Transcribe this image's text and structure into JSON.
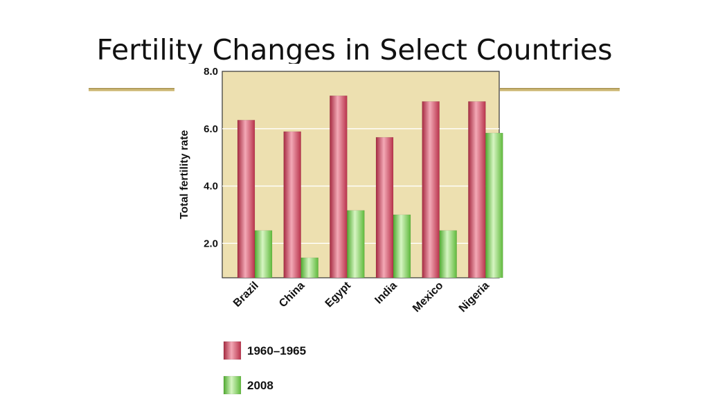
{
  "slide": {
    "title": "Fertility Changes in Select Countries"
  },
  "colors": {
    "plot_background": "#ede0b0",
    "series_1960": "#c4455a",
    "series_2008": "#7ecf5a",
    "accent_rule": "#c9b472"
  },
  "chart_data": {
    "type": "bar",
    "title": "",
    "xlabel": "",
    "ylabel": "Total fertility rate",
    "ylim": [
      0.8,
      8.0
    ],
    "yticks": [
      2.0,
      4.0,
      6.0,
      8.0
    ],
    "ytick_labels": [
      "2.0",
      "4.0",
      "6.0",
      "8.0"
    ],
    "grid": true,
    "legend_position": "bottom",
    "categories": [
      "Brazil",
      "China",
      "Egypt",
      "India",
      "Mexico",
      "Nigeria"
    ],
    "series": [
      {
        "name": "1960–1965",
        "color": "#c4455a",
        "values": [
          6.3,
          5.9,
          7.15,
          5.7,
          6.95,
          6.95
        ]
      },
      {
        "name": "2008",
        "color": "#7ecf5a",
        "values": [
          2.45,
          1.5,
          3.15,
          3.0,
          2.45,
          5.85
        ]
      }
    ]
  }
}
